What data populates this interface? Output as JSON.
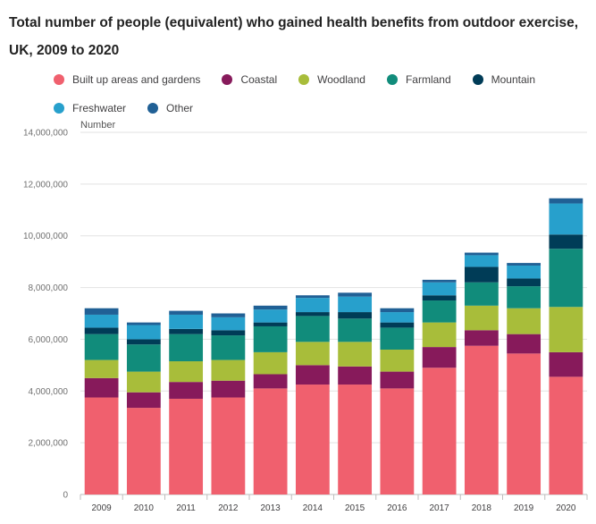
{
  "title": "Total number of people (equivalent) who gained health benefits from outdoor exercise, UK, 2009 to 2020",
  "chart_data": {
    "type": "bar",
    "stacked": true,
    "title": "Total number of people (equivalent) who gained health benefits from outdoor exercise, UK, 2009 to 2020",
    "ylabel": "Number",
    "xlabel": "",
    "ylim": [
      0,
      14000000
    ],
    "yticks": [
      0,
      2000000,
      4000000,
      6000000,
      8000000,
      10000000,
      12000000,
      14000000
    ],
    "ytick_labels": [
      "0",
      "2,000,000",
      "4,000,000",
      "6,000,000",
      "8,000,000",
      "10,000,000",
      "12,000,000",
      "14,000,000"
    ],
    "grid": true,
    "legend_position": "top",
    "categories": [
      "2009",
      "2010",
      "2011",
      "2012",
      "2013",
      "2014",
      "2015",
      "2016",
      "2017",
      "2018",
      "2019",
      "2020"
    ],
    "series": [
      {
        "name": "Built up areas and gardens",
        "color": "#f0606e",
        "values": [
          3750000,
          3350000,
          3700000,
          3750000,
          4100000,
          4250000,
          4250000,
          4100000,
          4900000,
          5750000,
          5450000,
          4550000
        ]
      },
      {
        "name": "Coastal",
        "color": "#871a5b",
        "values": [
          750000,
          600000,
          650000,
          650000,
          550000,
          750000,
          700000,
          650000,
          800000,
          600000,
          750000,
          950000
        ]
      },
      {
        "name": "Woodland",
        "color": "#a8bd3a",
        "values": [
          700000,
          800000,
          800000,
          800000,
          850000,
          900000,
          950000,
          850000,
          950000,
          950000,
          1000000,
          1750000
        ]
      },
      {
        "name": "Farmland",
        "color": "#118c7b",
        "values": [
          1000000,
          1050000,
          1050000,
          950000,
          1000000,
          1000000,
          900000,
          850000,
          850000,
          900000,
          850000,
          2250000
        ]
      },
      {
        "name": "Mountain",
        "color": "#003c57",
        "values": [
          250000,
          200000,
          200000,
          200000,
          150000,
          150000,
          250000,
          200000,
          200000,
          600000,
          300000,
          550000
        ]
      },
      {
        "name": "Freshwater",
        "color": "#27a0cc",
        "values": [
          500000,
          550000,
          550000,
          500000,
          500000,
          550000,
          600000,
          400000,
          500000,
          450000,
          500000,
          1200000
        ]
      },
      {
        "name": "Other",
        "color": "#206095",
        "values": [
          250000,
          100000,
          150000,
          150000,
          150000,
          100000,
          150000,
          150000,
          100000,
          100000,
          100000,
          200000
        ]
      }
    ]
  }
}
